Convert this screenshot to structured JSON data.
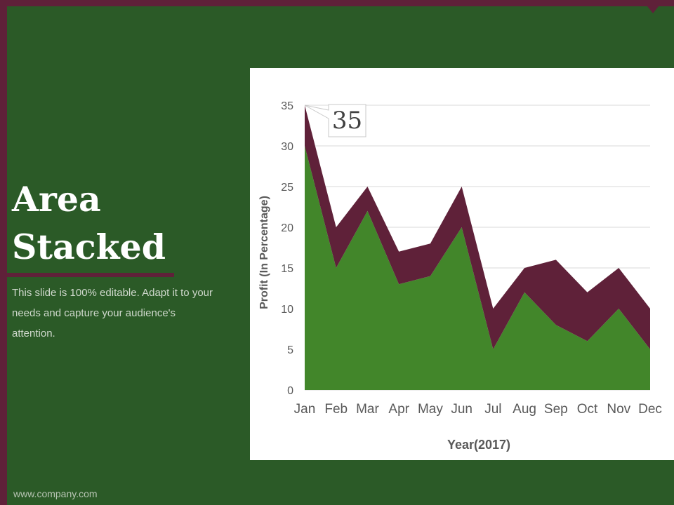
{
  "slide": {
    "title_line1": "Area",
    "title_line2": "Stacked",
    "description": "This slide is 100% editable. Adapt it to your needs and capture your audience's attention.",
    "footer": "www.company.com"
  },
  "colors": {
    "background": "#2b5a27",
    "accent": "#5f2139",
    "series_base": "#42862a",
    "series_top": "#5f2139"
  },
  "chart_data": {
    "type": "area",
    "stacked": true,
    "categories": [
      "Jan",
      "Feb",
      "Mar",
      "Apr",
      "May",
      "Jun",
      "Jul",
      "Aug",
      "Sep",
      "Oct",
      "Nov",
      "Dec"
    ],
    "series": [
      {
        "values": [
          30,
          15,
          22,
          13,
          14,
          20,
          5,
          12,
          8,
          6,
          10,
          5
        ]
      },
      {
        "values": [
          5,
          5,
          3,
          4,
          4,
          5,
          5,
          3,
          8,
          6,
          5,
          5
        ]
      }
    ],
    "yticks": [
      0,
      5,
      10,
      15,
      20,
      25,
      30,
      35
    ],
    "ylim": [
      0,
      35
    ],
    "xlabel": "Year(2017)",
    "ylabel": "Profit (In Percentage)",
    "grid": true,
    "callout": "35"
  }
}
